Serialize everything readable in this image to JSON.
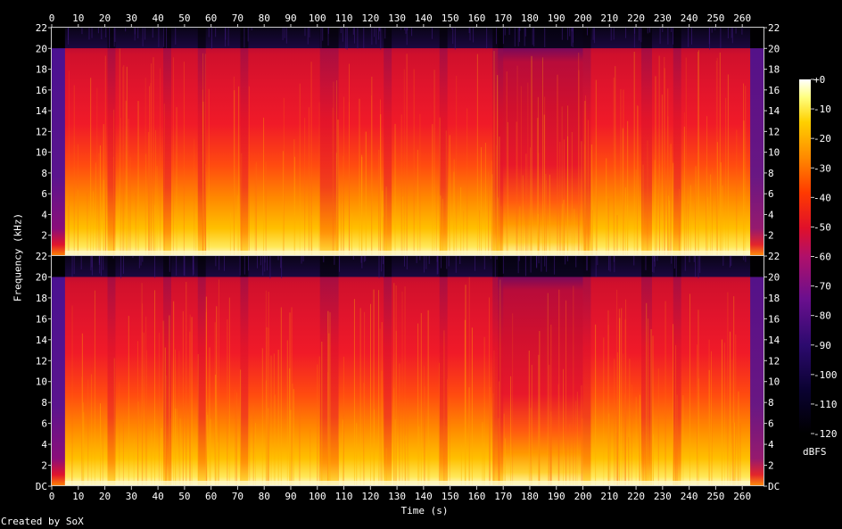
{
  "chart_data": {
    "type": "heatmap",
    "title": "",
    "xlabel": "Time (s)",
    "ylabel": "Frequency (kHz)",
    "x_ticks": [
      "0",
      "10",
      "20",
      "30",
      "40",
      "50",
      "60",
      "70",
      "80",
      "90",
      "100",
      "110",
      "120",
      "130",
      "140",
      "150",
      "160",
      "170",
      "180",
      "190",
      "200",
      "210",
      "220",
      "230",
      "240",
      "250",
      "260"
    ],
    "y_ticks": [
      "DC",
      "2",
      "4",
      "6",
      "8",
      "10",
      "12",
      "14",
      "16",
      "18",
      "20",
      "22"
    ],
    "xlim": [
      0,
      268
    ],
    "ylim_khz": [
      0,
      22
    ],
    "channels": 2,
    "spectrum_ceiling_khz": 20,
    "colorbar": {
      "label": "dBFS",
      "ticks": [
        "+0",
        "-10",
        "-20",
        "-30",
        "-40",
        "-50",
        "-60",
        "-70",
        "-80",
        "-90",
        "-100",
        "-110",
        "-120"
      ],
      "range": [
        -120,
        0
      ]
    },
    "dropout_segments_s": [
      [
        21,
        24
      ],
      [
        42,
        45
      ],
      [
        55,
        58
      ],
      [
        71,
        74
      ],
      [
        101,
        108
      ],
      [
        125,
        128
      ],
      [
        146,
        149
      ],
      [
        166,
        170
      ],
      [
        200,
        203
      ],
      [
        222,
        226
      ],
      [
        234,
        237
      ],
      [
        263,
        268
      ]
    ],
    "quiet_section_s": [
      168,
      200
    ]
  },
  "footer": {
    "credit": "Created by SoX"
  }
}
